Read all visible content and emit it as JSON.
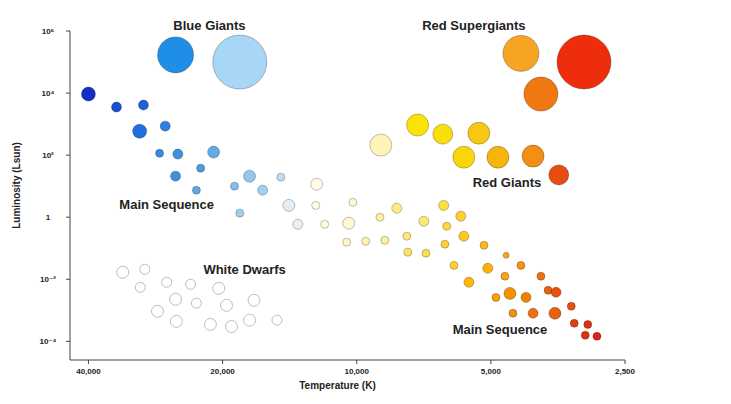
{
  "chart_data": {
    "type": "bubble",
    "xlabel": "Temperature (K)",
    "ylabel": "Luminosity (Lsun)",
    "log": true,
    "grid": false,
    "xlim": [
      44000,
      2500
    ],
    "ylim": [
      2.5e-05,
      1000000
    ],
    "xticks": [
      {
        "value": 40000,
        "label": "40,000"
      },
      {
        "value": 20000,
        "label": "20,000"
      },
      {
        "value": 10000,
        "label": "10,000"
      },
      {
        "value": 5000,
        "label": "5,000"
      },
      {
        "value": 2500,
        "label": "2,500"
      }
    ],
    "yticks": [
      {
        "value": 0.0001,
        "label": "10⁻⁴"
      },
      {
        "value": 0.01,
        "label": "10⁻²"
      },
      1,
      {
        "value": 100,
        "label": "10²"
      },
      {
        "value": 10000,
        "label": "10⁴"
      },
      {
        "value": 1000000,
        "label": "10⁶"
      }
    ],
    "annotations": [
      {
        "text": "Blue Giants",
        "x": 21400,
        "y": 1500000
      },
      {
        "text": "Red Supergiants",
        "x": 5460,
        "y": 1500000
      },
      {
        "text": "Red Giants",
        "x": 4600,
        "y": 13
      },
      {
        "text": "Main Sequence",
        "x": 26700,
        "y": 2.4
      },
      {
        "text": "White Dwarfs",
        "x": 17850,
        "y": 0.0195
      },
      {
        "text": "Main Sequence",
        "x": 4770,
        "y": 0.00023
      }
    ],
    "x": [
      25500,
      18300,
      4280,
      3090,
      3860,
      8830,
      7300,
      6410,
      5320,
      5750,
      4820,
      4020,
      3520,
      40000,
      34600,
      30100,
      30700,
      26900,
      27700,
      25200,
      20950,
      25500,
      22400,
      22900,
      18800,
      17400,
      16260,
      14800,
      18300,
      14200,
      13560,
      12300,
      12360,
      11800,
      10200,
      10420,
      10530,
      9550,
      8870,
      8650,
      8130,
      7720,
      7680,
      7070,
      6990,
      6380,
      6280,
      6340,
      5840,
      5750,
      6050,
      5180,
      5600,
      5080,
      4620,
      4650,
      4870,
      4280,
      4530,
      4170,
      3860,
      3720,
      3570,
      4460,
      4020,
      3590,
      3300,
      3250,
      3030,
      3070,
      2890,
      33500,
      29900,
      30600,
      26700,
      23600,
      20400,
      25500,
      22900,
      28000,
      19600,
      17000,
      25400,
      21300,
      19100,
      17400,
      15100
    ],
    "values": [
      170000,
      100000,
      190000,
      100000,
      9300,
      210,
      930,
      475,
      510,
      86,
      86,
      93,
      23,
      9300,
      3530,
      4100,
      590,
      860,
      116,
      108,
      125,
      21,
      38,
      7.4,
      10,
      21,
      7.4,
      19.5,
      1.35,
      2.4,
      0.59,
      11.6,
      2.4,
      0.59,
      3,
      0.64,
      0.156,
      0.168,
      1,
      0.18,
      1.95,
      0.244,
      0.074,
      0.74,
      0.069,
      2.4,
      0.51,
      0.135,
      1.08,
      0.244,
      0.028,
      0.125,
      0.008,
      0.0226,
      0.059,
      0.0125,
      0.0026,
      0.028,
      0.0035,
      0.0026,
      0.0125,
      0.0044,
      0.0038,
      0.0008,
      0.0008,
      0.0008,
      0.00135,
      0.00038,
      0.00035,
      0.000156,
      0.000145,
      0.0168,
      0.021,
      0.0055,
      0.008,
      0.0069,
      0.0051,
      0.00226,
      0.0017,
      0.00093,
      0.00145,
      0.0021,
      0.00044,
      0.00035,
      0.0003,
      0.00048,
      0.00048
    ],
    "size": [
      18,
      27,
      18,
      27,
      17,
      11,
      11,
      10,
      11,
      11,
      11,
      11,
      10,
      7,
      5,
      5,
      7,
      5,
      4,
      5,
      6,
      5,
      4,
      4,
      4,
      6,
      5,
      4,
      4,
      6,
      5,
      6,
      4,
      4,
      4,
      6,
      4,
      4,
      4,
      4,
      5,
      4,
      4,
      5,
      4,
      5,
      4,
      4,
      5,
      5,
      4,
      4,
      5,
      5,
      3,
      4,
      4,
      4,
      6,
      5,
      4,
      4,
      5,
      4,
      5,
      6,
      4,
      4,
      4,
      4,
      4,
      6,
      5,
      5,
      5,
      5,
      6,
      6,
      5,
      6,
      6,
      6,
      6,
      6,
      6,
      6,
      5
    ],
    "colors": [
      "#1e8ee6",
      "#a8d6f6",
      "#f5a521",
      "#ee2d0c",
      "#ef7811",
      "#fff4b8",
      "#fbe305",
      "#f8df0a",
      "#f8c712",
      "#fad50c",
      "#f6b40c",
      "#f28f14",
      "#e54e12",
      "#0f2fc6",
      "#1a4fd0",
      "#1f5fd8",
      "#1f6fe0",
      "#2e80e2",
      "#3a8ae2",
      "#4090e2",
      "#62a9e9",
      "#4090e2",
      "#5098e3",
      "#60a8e8",
      "#84bde9",
      "#92c8f0",
      "#a2d0f0",
      "#c2ddf0",
      "#a2d0f0",
      "#e2edf5",
      "#eaf0f6",
      "#fffbe8",
      "#fffce8",
      "#fffce0",
      "#fff8d0",
      "#fff8d0",
      "#fff6c0",
      "#fff3b0",
      "#fff0a0",
      "#fff0a0",
      "#ffec80",
      "#ffe880",
      "#ffe060",
      "#ffe870",
      "#ffdc50",
      "#ffe040",
      "#ffd840",
      "#ffd030",
      "#ffd030",
      "#ffc820",
      "#ffd030",
      "#ffb820",
      "#ffb800",
      "#ffb000",
      "#ffa020",
      "#ffa010",
      "#f8a000",
      "#f89010",
      "#f89000",
      "#f08000",
      "#f07010",
      "#e86010",
      "#e85010",
      "#f09010",
      "#f07010",
      "#e86010",
      "#e85010",
      "#e04010",
      "#e03010",
      "#e03010",
      "#e02010",
      "#ffffff",
      "#ffffff",
      "#ffffff",
      "#ffffff",
      "#ffffff",
      "#ffffff",
      "#ffffff",
      "#ffffff",
      "#ffffff",
      "#ffffff",
      "#ffffff",
      "#ffffff",
      "#ffffff",
      "#ffffff",
      "#ffffff",
      "#ffffff"
    ]
  }
}
